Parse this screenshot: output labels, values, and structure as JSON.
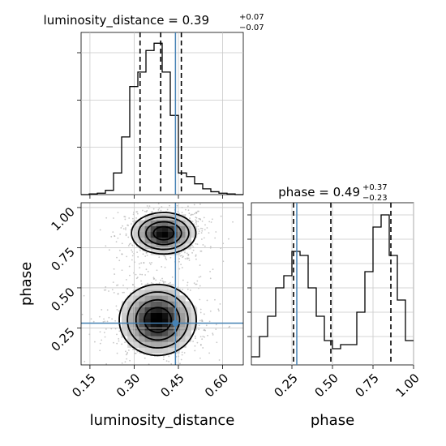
{
  "chart_data": {
    "type": "corner",
    "parameters": [
      "luminosity_distance",
      "phase"
    ],
    "truths": {
      "luminosity_distance": 0.44,
      "phase": 0.28
    },
    "grid": true,
    "panels": {
      "luminosity_distance": {
        "title_main": "luminosity_distance = 0.39",
        "title_sup": "+0.07",
        "title_sub": "−0.07",
        "xlim": [
          0.12,
          0.67
        ],
        "quantiles": [
          0.32,
          0.39,
          0.46
        ],
        "bin_edges": [
          0.12,
          0.1475,
          0.175,
          0.2025,
          0.23,
          0.2575,
          0.285,
          0.3125,
          0.34,
          0.3675,
          0.395,
          0.4225,
          0.45,
          0.4775,
          0.505,
          0.5325,
          0.56,
          0.5875,
          0.615,
          0.6425,
          0.67
        ],
        "counts": [
          0,
          1,
          2,
          6,
          30,
          80,
          150,
          170,
          200,
          210,
          170,
          110,
          30,
          25,
          15,
          8,
          4,
          2,
          1,
          0
        ],
        "ymax": 225
      },
      "phase": {
        "title_main": "phase = 0.49",
        "title_sup": "+0.37",
        "title_sub": "−0.23",
        "xlim": [
          0.0,
          1.0
        ],
        "xticks": [
          "0.25",
          "0.50",
          "0.75",
          "1.00"
        ],
        "xtick_values": [
          0.25,
          0.5,
          0.75,
          1.0
        ],
        "xlabel": "phase",
        "quantiles": [
          0.26,
          0.49,
          0.86
        ],
        "bin_edges": [
          0,
          0.05,
          0.1,
          0.15,
          0.2,
          0.25,
          0.3,
          0.35,
          0.4,
          0.45,
          0.5,
          0.55,
          0.6,
          0.65,
          0.7,
          0.75,
          0.8,
          0.85,
          0.9,
          0.95,
          1.0
        ],
        "counts": [
          10,
          35,
          60,
          95,
          110,
          140,
          135,
          95,
          60,
          30,
          20,
          25,
          25,
          65,
          115,
          170,
          185,
          135,
          80,
          30
        ],
        "ymax": 200
      },
      "joint": {
        "xlabel": "luminosity_distance",
        "ylabel": "phase",
        "xlim": [
          0.12,
          0.67
        ],
        "ylim": [
          0.02,
          1.03
        ],
        "xticks": [
          "0.15",
          "0.30",
          "0.45",
          "0.60"
        ],
        "xtick_values": [
          0.15,
          0.3,
          0.45,
          0.6
        ],
        "yticks": [
          "0.25",
          "0.50",
          "0.75",
          "1.00"
        ],
        "ytick_values": [
          0.25,
          0.5,
          0.75,
          1.0
        ],
        "modes": [
          {
            "x": 0.4,
            "y": 0.84,
            "sx": 0.055,
            "sy": 0.065,
            "weight": 1.0
          },
          {
            "x": 0.38,
            "y": 0.3,
            "sx": 0.065,
            "sy": 0.11,
            "weight": 1.05
          }
        ],
        "contour_levels": [
          0.14,
          0.3,
          0.55,
          0.82
        ],
        "density_range": [
          0.03,
          1.0
        ]
      }
    }
  }
}
